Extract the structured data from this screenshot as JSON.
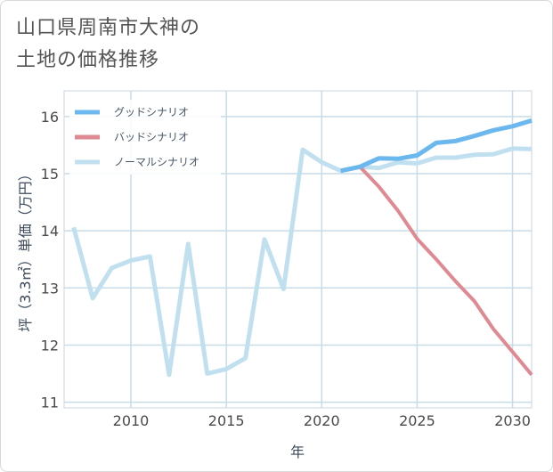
{
  "title": {
    "line1": "山口県周南市大神の",
    "line2": "土地の価格推移"
  },
  "chart_data": {
    "type": "line",
    "xlabel": "年",
    "ylabel": "坪（3.3㎡）単価（万円）",
    "xlim": [
      2006.5,
      2031
    ],
    "ylim": [
      10.9,
      16.45
    ],
    "x_ticks": [
      2010,
      2015,
      2020,
      2025,
      2030
    ],
    "y_ticks": [
      11,
      12,
      13,
      14,
      15,
      16
    ],
    "grid": true,
    "legend_position": "top-left",
    "series": [
      {
        "name": "グッドシナリオ",
        "color": "#6cb8ee",
        "width": 5,
        "x": [
          2021,
          2022,
          2023,
          2024,
          2025,
          2026,
          2027,
          2028,
          2029,
          2030,
          2031
        ],
        "values": [
          15.05,
          15.12,
          15.27,
          15.26,
          15.32,
          15.54,
          15.57,
          15.66,
          15.76,
          15.83,
          15.93
        ]
      },
      {
        "name": "バッドシナリオ",
        "color": "#df8a93",
        "width": 4,
        "x": [
          2021,
          2022,
          2023,
          2024,
          2025,
          2026,
          2027,
          2028,
          2029,
          2030,
          2031
        ],
        "values": [
          15.05,
          15.12,
          14.77,
          14.35,
          13.86,
          13.5,
          13.12,
          12.77,
          12.28,
          11.88,
          11.48
        ]
      },
      {
        "name": "ノーマルシナリオ",
        "color": "#c1e0ef",
        "width": 5,
        "x": [
          2007,
          2008,
          2009,
          2010,
          2011,
          2012,
          2013,
          2014,
          2015,
          2016,
          2017,
          2018,
          2019,
          2020,
          2021,
          2022,
          2023,
          2024,
          2025,
          2026,
          2027,
          2028,
          2029,
          2030,
          2031
        ],
        "values": [
          14.06,
          12.82,
          13.35,
          13.48,
          13.55,
          11.48,
          13.77,
          11.5,
          11.58,
          11.77,
          13.85,
          12.98,
          15.42,
          15.2,
          15.05,
          15.12,
          15.1,
          15.2,
          15.18,
          15.28,
          15.28,
          15.33,
          15.34,
          15.44,
          15.43
        ]
      }
    ]
  }
}
